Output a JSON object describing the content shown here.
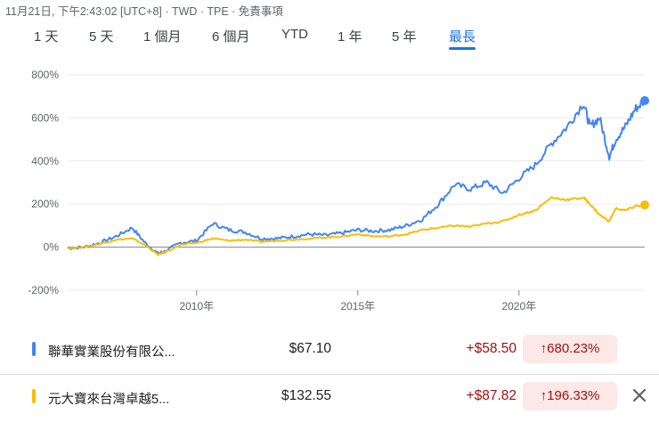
{
  "header": {
    "timestamp": "11月21日, 下午2:43:02 [UTC+8] · TWD · TPE · 免責事項"
  },
  "tabs": [
    {
      "label": "1 天"
    },
    {
      "label": "5 天"
    },
    {
      "label": "1 個月"
    },
    {
      "label": "6 個月"
    },
    {
      "label": "YTD"
    },
    {
      "label": "1 年"
    },
    {
      "label": "5 年"
    },
    {
      "label": "最長",
      "active": true
    }
  ],
  "colors": {
    "accent": "#1a73e8",
    "series_blue": "#4285f4",
    "series_yellow": "#fbbc04",
    "negative": "#a50e0e",
    "negative_bg": "#fce8e6"
  },
  "chart_data": {
    "type": "line",
    "y_ticks": [
      "800%",
      "600%",
      "400%",
      "200%",
      "0%",
      "-200%"
    ],
    "x_ticks": [
      "2010年",
      "2015年",
      "2020年"
    ],
    "ylim": [
      -200,
      800
    ],
    "xlim": [
      2006.0,
      2023.9
    ],
    "grid": "horizontal",
    "series": [
      {
        "name": "聯華實業股份有限公...",
        "color": "#4285f4",
        "x": [
          2006.0,
          2006.5,
          2007.0,
          2007.5,
          2008.0,
          2008.4,
          2008.8,
          2009.0,
          2009.5,
          2010.0,
          2010.5,
          2011.0,
          2011.5,
          2012.0,
          2012.5,
          2013.0,
          2013.5,
          2014.0,
          2014.5,
          2015.0,
          2015.5,
          2016.0,
          2016.5,
          2017.0,
          2017.5,
          2018.0,
          2018.5,
          2019.0,
          2019.5,
          2020.0,
          2020.5,
          2021.0,
          2021.5,
          2022.0,
          2022.2,
          2022.5,
          2022.8,
          2023.0,
          2023.3,
          2023.6,
          2023.9
        ],
        "values": [
          -5,
          0,
          20,
          50,
          90,
          20,
          -30,
          -20,
          20,
          30,
          110,
          80,
          70,
          40,
          40,
          50,
          60,
          55,
          65,
          80,
          75,
          80,
          100,
          130,
          200,
          290,
          270,
          300,
          250,
          320,
          380,
          480,
          560,
          670,
          560,
          600,
          420,
          500,
          560,
          640,
          680
        ]
      },
      {
        "name": "元大寶來台灣卓越5...",
        "color": "#fbbc04",
        "x": [
          2006.0,
          2006.5,
          2007.0,
          2007.5,
          2008.0,
          2008.4,
          2008.8,
          2009.0,
          2009.5,
          2010.0,
          2010.5,
          2011.0,
          2011.5,
          2012.0,
          2012.5,
          2013.0,
          2013.5,
          2014.0,
          2014.5,
          2015.0,
          2015.5,
          2016.0,
          2016.5,
          2017.0,
          2017.5,
          2018.0,
          2018.5,
          2019.0,
          2019.5,
          2020.0,
          2020.5,
          2021.0,
          2021.5,
          2022.0,
          2022.2,
          2022.5,
          2022.8,
          2023.0,
          2023.3,
          2023.6,
          2023.9
        ],
        "values": [
          -5,
          0,
          15,
          35,
          40,
          10,
          -35,
          -25,
          10,
          20,
          40,
          30,
          35,
          25,
          30,
          35,
          40,
          45,
          50,
          60,
          50,
          50,
          60,
          80,
          90,
          100,
          95,
          110,
          120,
          150,
          170,
          230,
          220,
          230,
          200,
          150,
          120,
          180,
          170,
          190,
          196
        ]
      }
    ]
  },
  "rows": [
    {
      "name": "聯華實業股份有限公...",
      "price": "$67.10",
      "change": "+$58.50",
      "percent": "680.23%",
      "color": "#4285f4"
    },
    {
      "name": "元大寶來台灣卓越5...",
      "price": "$132.55",
      "change": "+$87.82",
      "percent": "196.33%",
      "color": "#fbbc04"
    }
  ],
  "icons": {
    "up_arrow": "arrow-up-icon",
    "close": "close-icon"
  }
}
